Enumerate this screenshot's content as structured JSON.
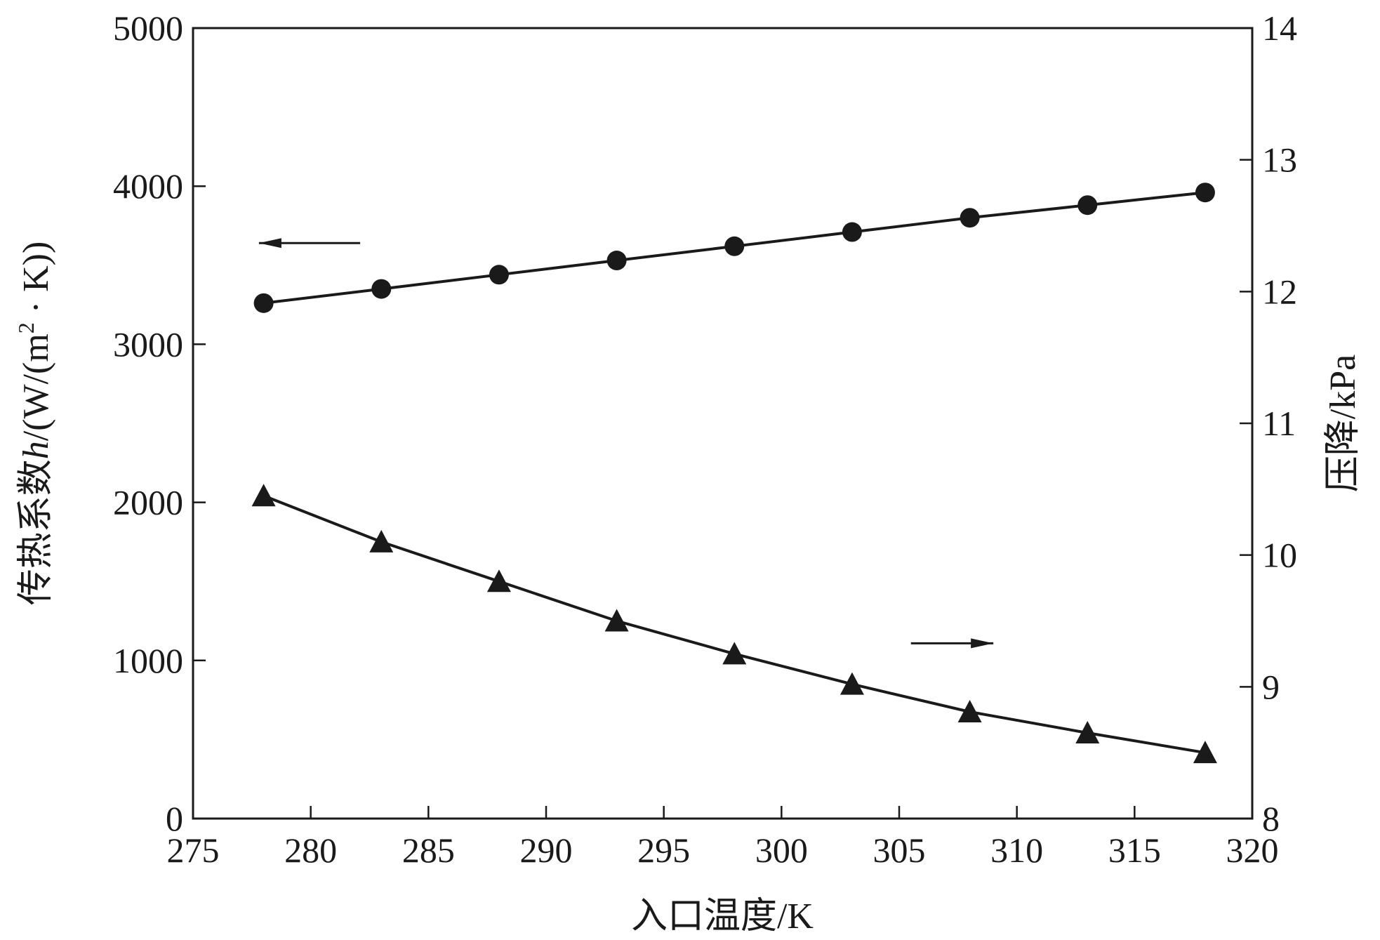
{
  "chart_data": {
    "type": "line",
    "xlabel": "入口温度/K",
    "ylabel_left": "传热系数h/(W/(m²·K))",
    "ylabel_left_parts": {
      "prefix": "传热系数",
      "italic": "h",
      "suffix": "/(W/(m",
      "sup": "2",
      "tail": " · K))"
    },
    "ylabel_right": "压降/kPa",
    "xlim": [
      275,
      320
    ],
    "ylim_left": [
      0,
      5000
    ],
    "ylim_right": [
      8,
      14
    ],
    "x_ticks": [
      275,
      280,
      285,
      290,
      295,
      300,
      305,
      310,
      315,
      320
    ],
    "y_left_ticks": [
      0,
      1000,
      2000,
      3000,
      4000,
      5000
    ],
    "y_right_ticks": [
      8,
      9,
      10,
      11,
      12,
      13,
      14
    ],
    "x": [
      278,
      283,
      288,
      293,
      298,
      303,
      308,
      313,
      318
    ],
    "series": [
      {
        "axis": "left",
        "marker": "circle",
        "values": [
          3260,
          3350,
          3440,
          3530,
          3620,
          3710,
          3800,
          3880,
          3960
        ]
      },
      {
        "axis": "right",
        "marker": "triangle",
        "values": [
          10.45,
          10.1,
          9.8,
          9.5,
          9.25,
          9.02,
          8.81,
          8.65,
          8.5
        ]
      }
    ],
    "annotations": [
      {
        "type": "arrow",
        "direction": "left",
        "series": 0
      },
      {
        "type": "arrow",
        "direction": "right",
        "series": 1
      }
    ],
    "grid": false,
    "legend": "none",
    "colors": {
      "line": "#1a1a1a",
      "background": "#ffffff"
    }
  }
}
